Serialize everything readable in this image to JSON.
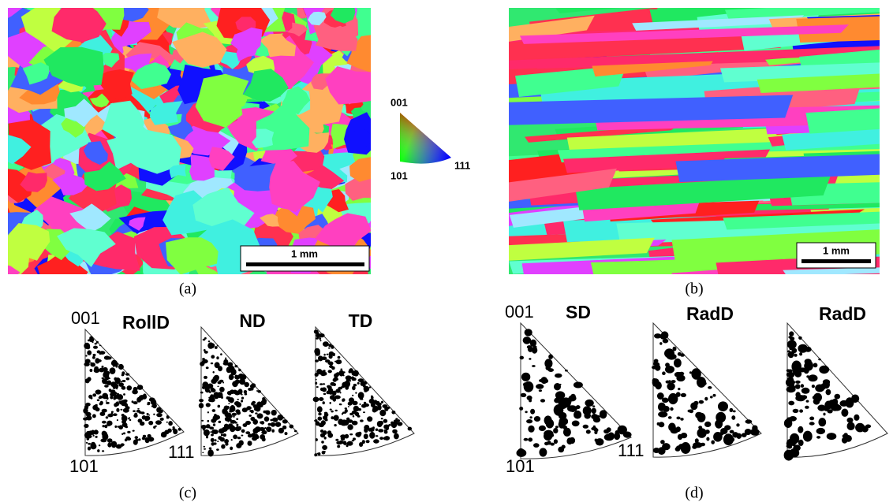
{
  "maps": [
    {
      "label": "(a)",
      "scale_bar": "1 mm"
    },
    {
      "label": "(b)",
      "scale_bar": "1 mm"
    }
  ],
  "color_key": {
    "top": "001",
    "left": "101",
    "right": "111"
  },
  "pole_figures": [
    {
      "label": "(c)",
      "corner_top": "001",
      "corner_left": "101",
      "corner_right": "111",
      "directions": [
        "RollD",
        "ND",
        "TD"
      ]
    },
    {
      "label": "(d)",
      "corner_top": "001",
      "corner_left": "101",
      "corner_right": "111",
      "directions": [
        "SD",
        "RadD",
        "RadD"
      ]
    }
  ]
}
